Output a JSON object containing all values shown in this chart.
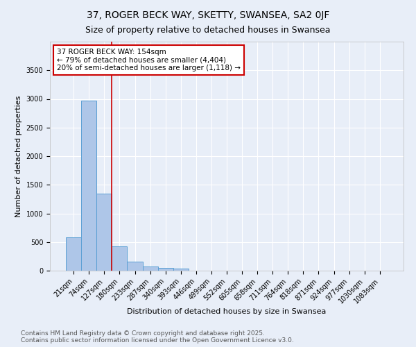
{
  "title": "37, ROGER BECK WAY, SKETTY, SWANSEA, SA2 0JF",
  "subtitle": "Size of property relative to detached houses in Swansea",
  "xlabel": "Distribution of detached houses by size in Swansea",
  "ylabel": "Number of detached properties",
  "categories": [
    "21sqm",
    "74sqm",
    "127sqm",
    "180sqm",
    "233sqm",
    "287sqm",
    "340sqm",
    "393sqm",
    "446sqm",
    "499sqm",
    "552sqm",
    "605sqm",
    "658sqm",
    "711sqm",
    "764sqm",
    "818sqm",
    "871sqm",
    "924sqm",
    "977sqm",
    "1030sqm",
    "1083sqm"
  ],
  "values": [
    580,
    2970,
    1340,
    420,
    160,
    70,
    45,
    35,
    0,
    0,
    0,
    0,
    0,
    0,
    0,
    0,
    0,
    0,
    0,
    0,
    0
  ],
  "bar_color": "#aec6e8",
  "bar_edge_color": "#5a9fd4",
  "background_color": "#e8eef8",
  "grid_color": "#ffffff",
  "vline_x": 2.5,
  "vline_color": "#cc0000",
  "annotation_text": "37 ROGER BECK WAY: 154sqm\n← 79% of detached houses are smaller (4,404)\n20% of semi-detached houses are larger (1,118) →",
  "annotation_box_color": "#ffffff",
  "annotation_box_edge": "#cc0000",
  "ylim": [
    0,
    4000
  ],
  "yticks": [
    0,
    500,
    1000,
    1500,
    2000,
    2500,
    3000,
    3500
  ],
  "footer": "Contains HM Land Registry data © Crown copyright and database right 2025.\nContains public sector information licensed under the Open Government Licence v3.0.",
  "title_fontsize": 10,
  "subtitle_fontsize": 9,
  "xlabel_fontsize": 8,
  "ylabel_fontsize": 8,
  "tick_fontsize": 7,
  "annotation_fontsize": 7.5,
  "footer_fontsize": 6.5
}
